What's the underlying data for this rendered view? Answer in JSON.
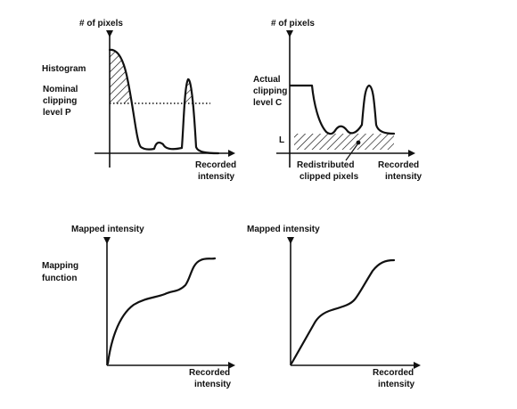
{
  "panels": {
    "histogram": {
      "y_axis_label": "# of pixels",
      "curve_label": "Histogram",
      "clip_label_line1": "Nominal",
      "clip_label_line2": "clipping",
      "clip_label_line3": "level P",
      "x_axis_label_line1": "Recorded",
      "x_axis_label_line2": "intensity"
    },
    "clipped": {
      "y_axis_label": "# of pixels",
      "clip_label_line1": "Actual",
      "clip_label_line2": "clipping",
      "clip_label_line3": "level C",
      "level_label": "L",
      "redistributed_line1": "Redistributed",
      "redistributed_line2": "clipped pixels",
      "x_axis_label_line1": "Recorded",
      "x_axis_label_line2": "intensity"
    },
    "mapping_left": {
      "y_axis_label": "Mapped intensity",
      "function_label_line1": "Mapping",
      "function_label_line2": "function",
      "x_axis_label_line1": "Recorded",
      "x_axis_label_line2": "intensity"
    },
    "mapping_right": {
      "y_axis_label": "Mapped intensity",
      "x_axis_label_line1": "Recorded",
      "x_axis_label_line2": "intensity"
    }
  },
  "colors": {
    "ink": "#111111",
    "background": "#ffffff"
  }
}
